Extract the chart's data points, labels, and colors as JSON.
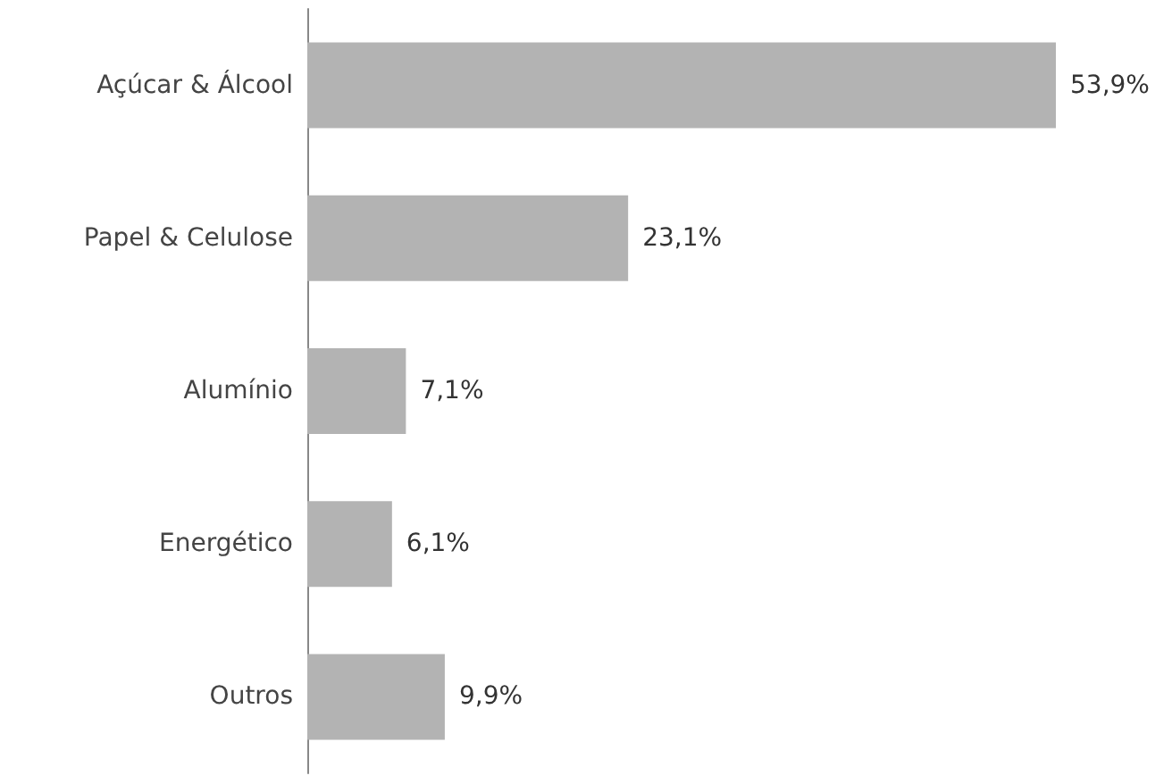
{
  "chart_data": {
    "type": "bar",
    "orientation": "horizontal",
    "categories": [
      "Açúcar & Álcool",
      "Papel & Celulose",
      "Alumínio",
      "Energético",
      "Outros"
    ],
    "values": [
      53.9,
      23.1,
      7.1,
      6.1,
      9.9
    ],
    "value_labels": [
      "53,9%",
      "23,1%",
      "7,1%",
      "6,1%",
      "9,9%"
    ],
    "color": "#b3b3b3"
  }
}
